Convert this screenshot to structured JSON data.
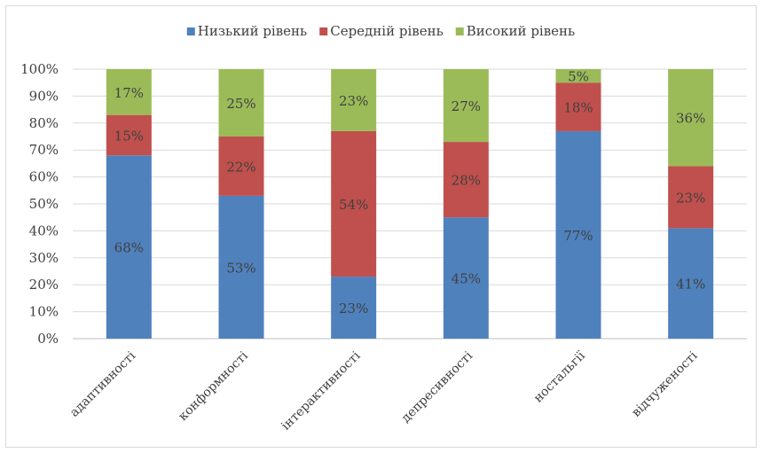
{
  "chart_data": {
    "type": "bar",
    "stacked": true,
    "categories": [
      "адаптивності",
      "конформності",
      "інтерактивності",
      "депресивності",
      "ностальгії",
      "відчуженості"
    ],
    "series": [
      {
        "name": "Низький рівень",
        "color": "#4f81bd",
        "values": [
          68,
          53,
          23,
          45,
          77,
          41
        ],
        "labels": [
          "68%",
          "53%",
          "23%",
          "45%",
          "77%",
          "41%"
        ]
      },
      {
        "name": "Середній рівень",
        "color": "#c0504d",
        "values": [
          15,
          22,
          54,
          28,
          18,
          23
        ],
        "labels": [
          "15%",
          "22%",
          "54%",
          "28%",
          "18%",
          "23%"
        ]
      },
      {
        "name": "Високий рівень",
        "color": "#9bbb59",
        "values": [
          17,
          25,
          23,
          27,
          5,
          36
        ],
        "labels": [
          "17%",
          "25%",
          "23%",
          "27%",
          "5%",
          "36%"
        ]
      }
    ],
    "y_ticks": [
      "0%",
      "10%",
      "20%",
      "30%",
      "40%",
      "50%",
      "60%",
      "70%",
      "80%",
      "90%",
      "100%"
    ],
    "ylim": [
      0,
      100
    ],
    "grid": true,
    "legend_position": "top-center"
  }
}
